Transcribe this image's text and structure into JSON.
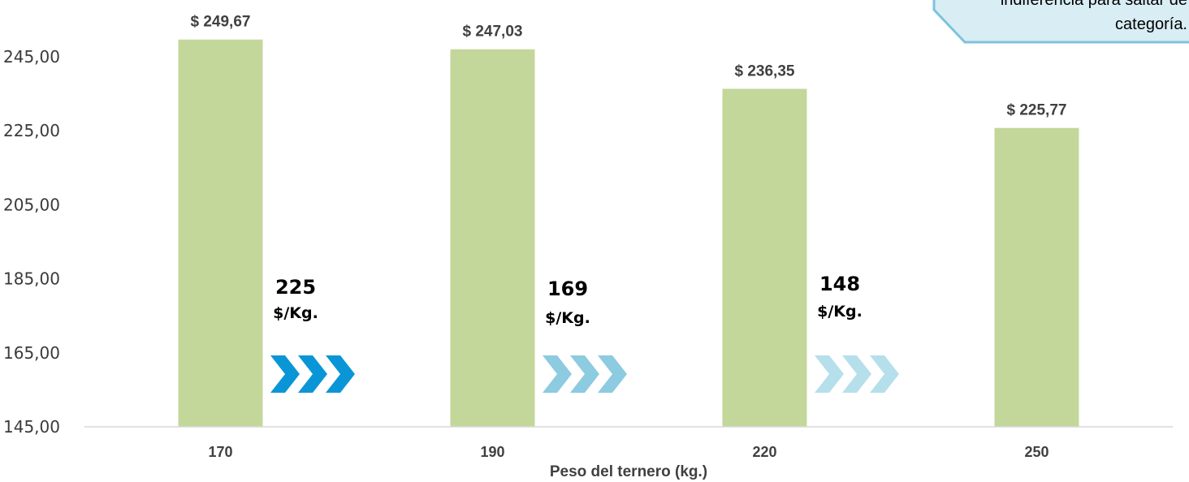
{
  "chart_data": {
    "type": "bar",
    "categories": [
      "170",
      "190",
      "220",
      "250"
    ],
    "values": [
      249.67,
      247.03,
      236.35,
      225.77
    ],
    "value_labels": [
      "$ 249,67",
      "$ 247,03",
      "$ 236,35",
      "$ 225,77"
    ],
    "xlabel": "Peso del ternero (kg.)",
    "ylabel": "",
    "ylim": [
      145,
      255
    ],
    "yticks": [
      "145,00",
      "165,00",
      "185,00",
      "205,00",
      "225,00",
      "245,00"
    ],
    "ytick_values": [
      145,
      165,
      185,
      205,
      225,
      245
    ],
    "bar_color": "#c4d79b",
    "differences": [
      {
        "value": "225",
        "unit": "$/Kg.",
        "arrow_color": "#0a96d6"
      },
      {
        "value": "169",
        "unit": "$/Kg.",
        "arrow_color": "#8ccbe0"
      },
      {
        "value": "148",
        "unit": "$/Kg.",
        "arrow_color": "#b6dfec"
      }
    ],
    "note": {
      "lines": [
        "indiferencia para saltar de",
        "categoría."
      ],
      "fill": "#d9edf4",
      "border": "#7dc3dd"
    }
  }
}
